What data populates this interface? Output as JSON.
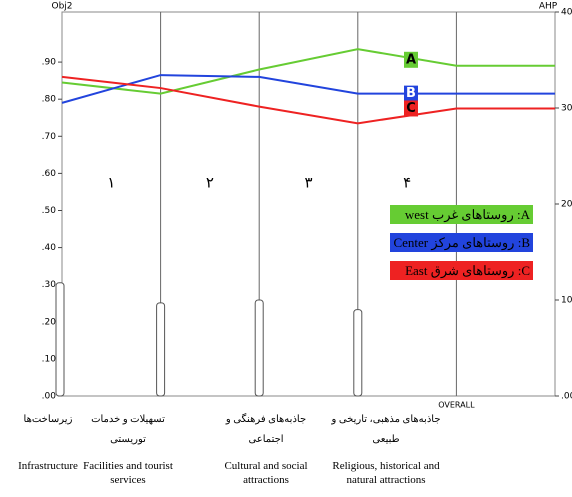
{
  "chart_data": {
    "type": "line",
    "y_label": "Obj2",
    "y2_label": "AHP",
    "categories": [
      "Infrastructure",
      "Facilities and tourist services",
      "Cultural and social attractions",
      "Religious, historical and natural attractions",
      "OVERALL",
      null
    ],
    "categories_fa": [
      "زیرساخت‌ها",
      "تسهیلات و خدمات توریستی",
      "جاذبه‌های فرهنگی و اجتماعی",
      "جاذبه‌های مذهبی، تاریخی و طبیعی"
    ],
    "segment_labels": [
      "۱",
      "۲",
      "۳",
      "۴"
    ],
    "series": [
      {
        "name": "A",
        "color": "#66cc33",
        "values": [
          0.845,
          0.815,
          0.88,
          0.935,
          0.89,
          0.89
        ]
      },
      {
        "name": "B",
        "color": "#2244dd",
        "values": [
          0.79,
          0.865,
          0.86,
          0.815,
          0.815,
          0.815
        ]
      },
      {
        "name": "C",
        "color": "#ee2222",
        "values": [
          0.86,
          0.83,
          0.78,
          0.735,
          0.775,
          0.775
        ]
      }
    ],
    "bars": {
      "axis": "y2",
      "values": [
        11.8,
        9.7,
        10.0,
        9.0,
        null,
        null
      ]
    },
    "legend": [
      "A: روستاهای غرب west",
      "B: روستاهای مرکز Center",
      "C: روستاهای شرق East"
    ],
    "ylim": [
      0,
      1.035
    ],
    "yticks": [
      {
        "value": 0,
        "label": ".00"
      },
      {
        "value": 0.1,
        "label": ".10"
      },
      {
        "value": 0.2,
        "label": ".20"
      },
      {
        "value": 0.3,
        "label": ".30"
      },
      {
        "value": 0.4,
        "label": ".40"
      },
      {
        "value": 0.5,
        "label": ".50"
      },
      {
        "value": 0.6,
        "label": ".60"
      },
      {
        "value": 0.7,
        "label": ".70"
      },
      {
        "value": 0.8,
        "label": ".80"
      },
      {
        "value": 0.9,
        "label": ".90"
      }
    ],
    "y2lim": [
      0,
      40
    ],
    "y2ticks": [
      {
        "value": 0,
        "label": ".00"
      },
      10,
      20,
      30,
      40
    ]
  }
}
